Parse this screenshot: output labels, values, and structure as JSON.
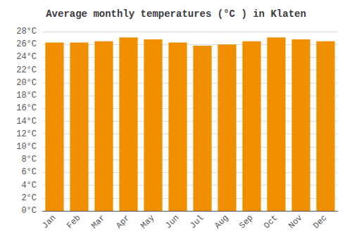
{
  "chart_data": {
    "type": "bar",
    "title": "Average monthly temperatures (°C ) in Klaten",
    "categories": [
      "Jan",
      "Feb",
      "Mar",
      "Apr",
      "May",
      "Jun",
      "Jul",
      "Aug",
      "Sep",
      "Oct",
      "Nov",
      "Dec"
    ],
    "values": [
      26.3,
      26.3,
      26.5,
      27.1,
      26.8,
      26.3,
      25.8,
      26.0,
      26.5,
      27.1,
      26.8,
      26.5
    ],
    "color": "#F09000",
    "ylim": [
      0,
      28
    ],
    "yticks": [
      {
        "value": 0,
        "label": "0°C"
      },
      {
        "value": 2,
        "label": "2°C"
      },
      {
        "value": 4,
        "label": "4°C"
      },
      {
        "value": 6,
        "label": "6°C"
      },
      {
        "value": 8,
        "label": "8°C"
      },
      {
        "value": 10,
        "label": "10°C"
      },
      {
        "value": 12,
        "label": "12°C"
      },
      {
        "value": 14,
        "label": "14°C"
      },
      {
        "value": 16,
        "label": "16°C"
      },
      {
        "value": 18,
        "label": "18°C"
      },
      {
        "value": 20,
        "label": "20°C"
      },
      {
        "value": 22,
        "label": "22°C"
      },
      {
        "value": 24,
        "label": "24°C"
      },
      {
        "value": 26,
        "label": "26°C"
      },
      {
        "value": 28,
        "label": "28°C"
      }
    ],
    "grid": true
  }
}
